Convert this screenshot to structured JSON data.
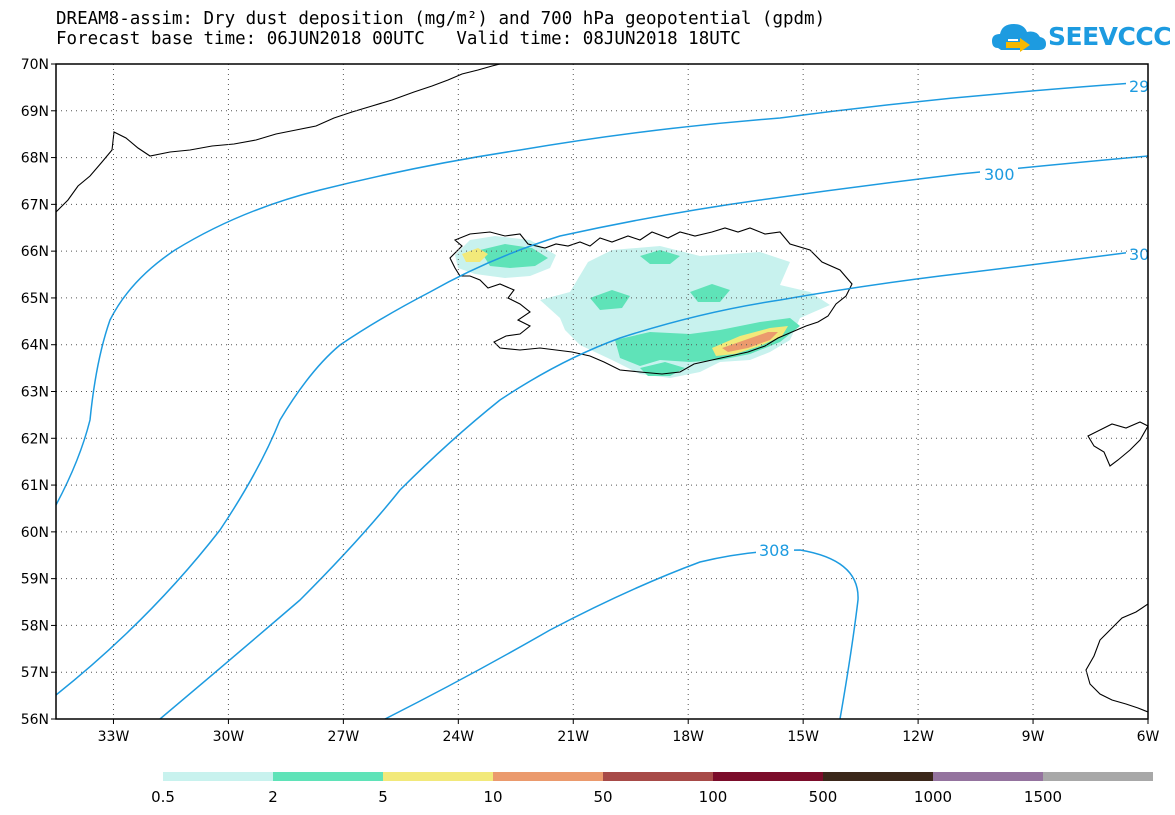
{
  "header": {
    "title_line1": "DREAM8-assim: Dry dust deposition (mg/m²) and 700 hPa geopotential (gpdm)",
    "title_line2": "Forecast base time: 06JUN2018 00UTC   Valid time: 08JUN2018 18UTC"
  },
  "logo": {
    "text": "SEEVCCC",
    "color": "#1d9be0"
  },
  "map": {
    "lon_range": [
      -34.5,
      -6
    ],
    "lat_range": [
      56,
      70
    ],
    "lat_ticks": [
      "70N",
      "69N",
      "68N",
      "67N",
      "66N",
      "65N",
      "64N",
      "63N",
      "62N",
      "61N",
      "60N",
      "59N",
      "58N",
      "57N",
      "56N"
    ],
    "lon_ticks": [
      "33W",
      "30W",
      "27W",
      "24W",
      "21W",
      "18W",
      "15W",
      "12W",
      "9W",
      "6W"
    ],
    "grid": "dotted",
    "contour_color": "#1d9be0",
    "contour_labels": [
      "29",
      "300",
      "30",
      "308"
    ]
  },
  "legend": {
    "thresholds": [
      "0.5",
      "2",
      "5",
      "10",
      "50",
      "100",
      "500",
      "1000",
      "1500"
    ],
    "colors": [
      "#c8f2ee",
      "#5fe3b8",
      "#f2e97a",
      "#eb9a6d",
      "#a74a48",
      "#7b0c2a",
      "#3b271a",
      "#94739e",
      "#a8a8a8"
    ]
  }
}
